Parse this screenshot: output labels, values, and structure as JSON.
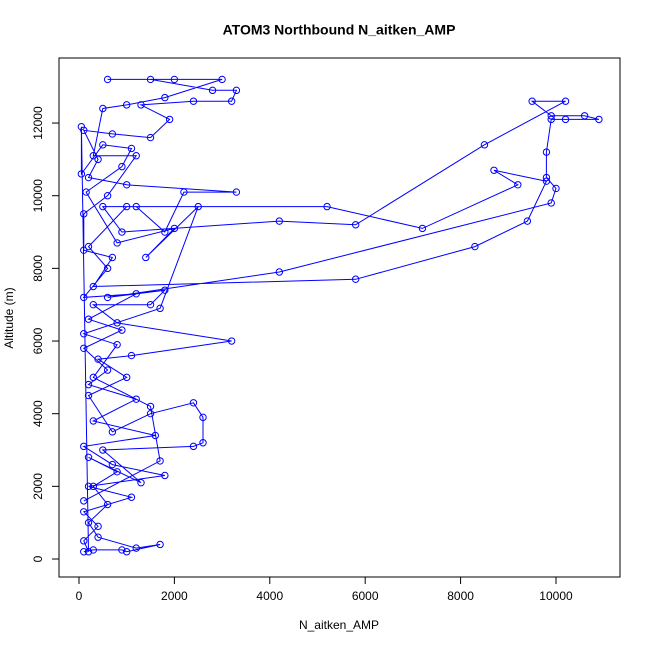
{
  "chart_data": {
    "type": "line",
    "marker": "circle",
    "title": "ATOM3 Northbound N_aitken_AMP",
    "x_label": "N_aitken_AMP",
    "y_label": "Altitude (m)",
    "color": "#0000ff",
    "x": [
      100,
      300,
      900,
      1000,
      1700,
      1200,
      400,
      200,
      600,
      300,
      800,
      200,
      1300,
      500,
      2400,
      2600,
      2600,
      2400,
      1500,
      700,
      200,
      1000,
      400,
      1100,
      3200,
      800,
      300,
      1500,
      1800,
      600,
      4200,
      9900,
      10000,
      9800,
      9800,
      9900,
      10200,
      10900,
      10600,
      9900,
      9500,
      10200,
      8500,
      5800,
      4200,
      900,
      500,
      1200,
      1800,
      2200,
      3300,
      1000,
      200,
      400,
      100,
      700,
      1500,
      1900,
      1300,
      2400,
      3200,
      3300,
      2800,
      1500,
      600,
      2000,
      3000,
      1800,
      1000,
      500,
      300,
      1200,
      600,
      100,
      100,
      700,
      300,
      5800,
      8300,
      9400,
      9800,
      8700,
      9200,
      7200,
      5200,
      1000,
      200,
      600,
      100,
      1200,
      200,
      900,
      100,
      600,
      200,
      1200,
      300,
      1600,
      100,
      700,
      1800,
      200,
      1100,
      100,
      400,
      100,
      200,
      50,
      50,
      500,
      1100,
      900,
      150,
      800,
      2000,
      1400,
      2500,
      1700,
      100,
      800,
      300,
      1500,
      1700,
      100
    ],
    "values": [
      200,
      250,
      250,
      200,
      400,
      300,
      600,
      1000,
      1500,
      2000,
      2400,
      2800,
      2100,
      3000,
      3100,
      3200,
      3900,
      4300,
      4000,
      3500,
      4500,
      5000,
      5500,
      5600,
      6000,
      6500,
      7000,
      7000,
      7400,
      7200,
      7900,
      9800,
      10200,
      10500,
      11200,
      12100,
      12100,
      12100,
      12200,
      12200,
      12600,
      12600,
      11400,
      9200,
      9300,
      9000,
      9700,
      9700,
      9000,
      10100,
      10100,
      10300,
      10500,
      11000,
      11800,
      11700,
      11600,
      12100,
      12500,
      12600,
      12600,
      12900,
      12900,
      13200,
      13200,
      13200,
      13200,
      12700,
      12500,
      12400,
      11100,
      11100,
      10000,
      9500,
      8500,
      8300,
      7500,
      7700,
      8600,
      9300,
      10400,
      10700,
      10300,
      9100,
      9700,
      9700,
      8600,
      8000,
      7200,
      7300,
      6600,
      6300,
      5800,
      5200,
      4800,
      4400,
      3800,
      3400,
      3100,
      2600,
      2300,
      2000,
      1700,
      1300,
      900,
      500,
      200,
      11900,
      10600,
      11400,
      11300,
      10800,
      10100,
      8700,
      9100,
      8300,
      9700,
      6900,
      6200,
      5900,
      5000,
      4200,
      2700,
      1600
    ],
    "xlim": [
      -419,
      11342
    ],
    "ylim": [
      -495,
      13790
    ],
    "xticks": [
      0,
      2000,
      4000,
      6000,
      8000,
      10000
    ],
    "yticks": [
      0,
      2000,
      4000,
      6000,
      8000,
      10000,
      12000
    ]
  }
}
